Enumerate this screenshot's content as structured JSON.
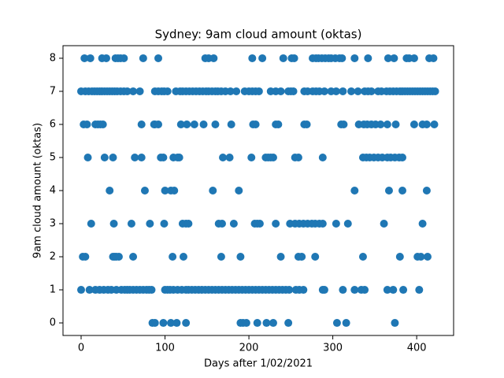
{
  "chart_data": {
    "type": "scatter",
    "title": "Sydney: 9am cloud amount (oktas)",
    "x_label": "Days after 1/02/2021",
    "y_label": "9am cloud amount (oktas)",
    "color": "#1f77b4",
    "xlim": [
      -21.6,
      444
    ],
    "ylim": [
      -0.38,
      8.38
    ],
    "xticks": [
      0,
      100,
      200,
      300,
      400
    ],
    "yticks": [
      0,
      1,
      2,
      3,
      4,
      5,
      6,
      7,
      8
    ],
    "x": [
      4,
      11,
      25,
      30,
      41,
      44,
      47,
      51,
      74,
      92,
      148,
      152,
      158,
      204,
      216,
      241,
      251,
      254,
      276,
      280,
      283,
      287,
      291,
      295,
      298,
      303,
      308,
      311,
      326,
      342,
      366,
      373,
      388,
      391,
      397,
      415,
      420,
      0,
      5,
      9,
      13,
      16,
      19,
      22,
      25,
      28,
      31,
      34,
      37,
      40,
      43,
      47,
      51,
      55,
      62,
      70,
      88,
      92,
      96,
      99,
      103,
      113,
      118,
      121,
      125,
      129,
      133,
      137,
      141,
      145,
      149,
      152,
      156,
      160,
      163,
      167,
      172,
      178,
      185,
      195,
      200,
      204,
      208,
      212,
      226,
      232,
      238,
      247,
      250,
      253,
      266,
      270,
      276,
      280,
      284,
      290,
      298,
      304,
      312,
      322,
      330,
      338,
      342,
      346,
      354,
      358,
      364,
      368,
      372,
      376,
      380,
      383,
      386,
      389,
      392,
      395,
      398,
      401,
      404,
      407,
      410,
      413,
      416,
      419,
      422,
      3,
      7,
      17,
      20,
      23,
      26,
      72,
      87,
      88,
      92,
      119,
      126,
      135,
      146,
      160,
      179,
      205,
      208,
      232,
      235,
      266,
      269,
      310,
      313,
      331,
      337,
      341,
      346,
      351,
      357,
      365,
      375,
      397,
      407,
      412,
      421,
      8,
      28,
      38,
      64,
      72,
      95,
      98,
      110,
      115,
      117,
      169,
      177,
      203,
      220,
      223,
      226,
      229,
      255,
      259,
      288,
      336,
      340,
      344,
      349,
      354,
      359,
      365,
      369,
      374,
      379,
      383,
      34,
      76,
      100,
      107,
      111,
      157,
      188,
      326,
      367,
      383,
      412,
      12,
      39,
      60,
      82,
      99,
      121,
      125,
      128,
      164,
      168,
      182,
      207,
      210,
      213,
      232,
      249,
      255,
      260,
      265,
      270,
      275,
      279,
      284,
      288,
      304,
      318,
      361,
      407,
      2,
      5,
      38,
      40,
      42,
      45,
      62,
      109,
      122,
      167,
      190,
      238,
      259,
      263,
      279,
      336,
      380,
      401,
      405,
      413,
      0,
      10,
      17,
      22,
      27,
      32,
      36,
      42,
      48,
      52,
      55,
      58,
      62,
      66,
      70,
      74,
      78,
      81,
      84,
      100,
      103,
      106,
      110,
      115,
      120,
      125,
      128,
      132,
      136,
      140,
      144,
      148,
      152,
      156,
      160,
      164,
      168,
      172,
      176,
      180,
      184,
      188,
      192,
      196,
      200,
      204,
      208,
      212,
      216,
      220,
      224,
      228,
      232,
      236,
      240,
      244,
      248,
      256,
      260,
      265,
      288,
      290,
      312,
      326,
      334,
      338,
      365,
      372,
      384,
      403,
      85,
      88,
      98,
      107,
      114,
      125,
      190,
      193,
      197,
      210,
      221,
      229,
      247,
      305,
      316,
      374
    ],
    "values": [
      8,
      8,
      8,
      8,
      8,
      8,
      8,
      8,
      8,
      8,
      8,
      8,
      8,
      8,
      8,
      8,
      8,
      8,
      8,
      8,
      8,
      8,
      8,
      8,
      8,
      8,
      8,
      8,
      8,
      8,
      8,
      8,
      8,
      8,
      8,
      8,
      8,
      7,
      7,
      7,
      7,
      7,
      7,
      7,
      7,
      7,
      7,
      7,
      7,
      7,
      7,
      7,
      7,
      7,
      7,
      7,
      7,
      7,
      7,
      7,
      7,
      7,
      7,
      7,
      7,
      7,
      7,
      7,
      7,
      7,
      7,
      7,
      7,
      7,
      7,
      7,
      7,
      7,
      7,
      7,
      7,
      7,
      7,
      7,
      7,
      7,
      7,
      7,
      7,
      7,
      7,
      7,
      7,
      7,
      7,
      7,
      7,
      7,
      7,
      7,
      7,
      7,
      7,
      7,
      7,
      7,
      7,
      7,
      7,
      7,
      7,
      7,
      7,
      7,
      7,
      7,
      7,
      7,
      7,
      7,
      7,
      7,
      7,
      7,
      7,
      6,
      6,
      6,
      6,
      6,
      6,
      6,
      6,
      6,
      6,
      6,
      6,
      6,
      6,
      6,
      6,
      6,
      6,
      6,
      6,
      6,
      6,
      6,
      6,
      6,
      6,
      6,
      6,
      6,
      6,
      6,
      6,
      6,
      6,
      6,
      6,
      5,
      5,
      5,
      5,
      5,
      5,
      5,
      5,
      5,
      5,
      5,
      5,
      5,
      5,
      5,
      5,
      5,
      5,
      5,
      5,
      5,
      5,
      5,
      5,
      5,
      5,
      5,
      5,
      5,
      5,
      5,
      4,
      4,
      4,
      4,
      4,
      4,
      4,
      4,
      4,
      4,
      4,
      3,
      3,
      3,
      3,
      3,
      3,
      3,
      3,
      3,
      3,
      3,
      3,
      3,
      3,
      3,
      3,
      3,
      3,
      3,
      3,
      3,
      3,
      3,
      3,
      3,
      3,
      3,
      3,
      2,
      2,
      2,
      2,
      2,
      2,
      2,
      2,
      2,
      2,
      2,
      2,
      2,
      2,
      2,
      2,
      2,
      2,
      2,
      2,
      1,
      1,
      1,
      1,
      1,
      1,
      1,
      1,
      1,
      1,
      1,
      1,
      1,
      1,
      1,
      1,
      1,
      1,
      1,
      1,
      1,
      1,
      1,
      1,
      1,
      1,
      1,
      1,
      1,
      1,
      1,
      1,
      1,
      1,
      1,
      1,
      1,
      1,
      1,
      1,
      1,
      1,
      1,
      1,
      1,
      1,
      1,
      1,
      1,
      1,
      1,
      1,
      1,
      1,
      1,
      1,
      1,
      1,
      1,
      1,
      1,
      1,
      1,
      1,
      1,
      1,
      1,
      1,
      1,
      1,
      0,
      0,
      0,
      0,
      0,
      0,
      0,
      0,
      0,
      0,
      0,
      0,
      0,
      0,
      0,
      0
    ]
  }
}
